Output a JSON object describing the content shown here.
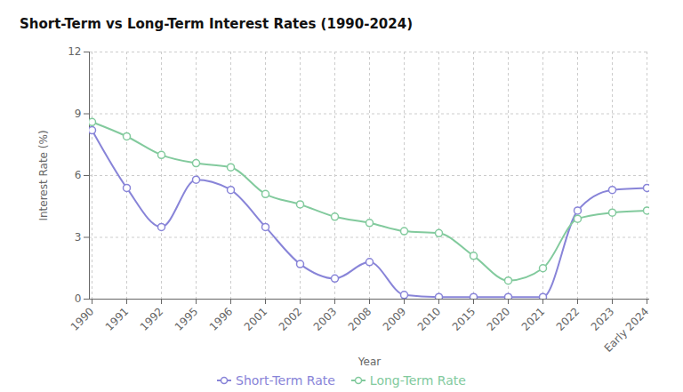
{
  "chart_data": {
    "type": "line",
    "title": "Short-Term vs Long-Term Interest Rates (1990-2024)",
    "x_label": "Year",
    "y_label": "Interest Rate (%)",
    "categories": [
      "1990",
      "1991",
      "1992",
      "1995",
      "1996",
      "2001",
      "2002",
      "2003",
      "2008",
      "2009",
      "2010",
      "2015",
      "2020",
      "2021",
      "2022",
      "2023",
      "Early 2024"
    ],
    "series": [
      {
        "name": "Short-Term Rate",
        "color": "#8884d8",
        "marker": "circle",
        "values": [
          8.2,
          5.4,
          3.5,
          5.8,
          5.3,
          3.5,
          1.7,
          1.0,
          1.8,
          0.2,
          0.1,
          0.1,
          0.1,
          0.1,
          4.3,
          5.3,
          5.4
        ]
      },
      {
        "name": "Long-Term Rate",
        "color": "#82ca9d",
        "marker": "circle",
        "values": [
          8.6,
          7.9,
          7.0,
          6.6,
          6.4,
          5.1,
          4.6,
          4.0,
          3.7,
          3.3,
          3.2,
          2.1,
          0.9,
          1.5,
          3.9,
          4.2,
          4.3
        ]
      }
    ],
    "ylim": [
      0,
      12
    ],
    "yticks": [
      0,
      3,
      6,
      9,
      12
    ],
    "grid": true,
    "legend": "bottom"
  }
}
